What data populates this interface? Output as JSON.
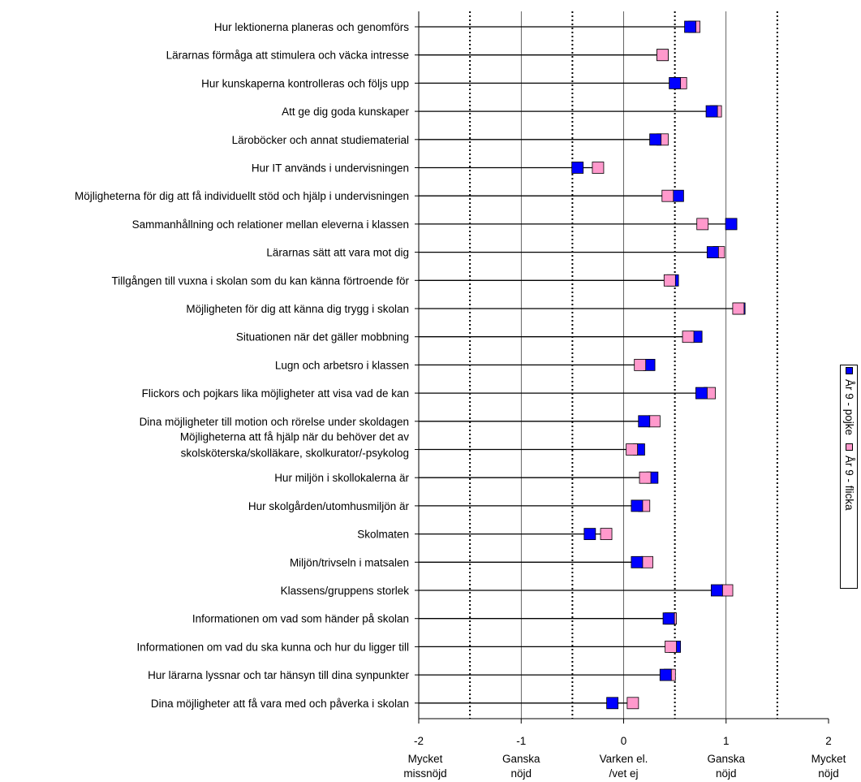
{
  "chart_data": {
    "type": "dot",
    "categories": [
      "Hur lektionerna planeras och genomförs",
      "Lärarnas förmåga att stimulera och väcka intresse",
      "Hur kunskaperna kontrolleras och följs upp",
      "Att ge dig goda kunskaper",
      "Läroböcker och annat studiematerial",
      "Hur IT används  i undervisningen",
      "Möjligheterna för dig  att få individuellt stöd och hjälp i undervisningen",
      "Sammanhållning och relationer mellan eleverna i klassen",
      "Lärarnas sätt att vara mot dig",
      "Tillgången till vuxna i skolan som du kan känna förtroende för",
      "Möjligheten för dig att känna dig trygg i skolan",
      "Situationen när det gäller mobbning",
      "Lugn och arbetsro i klassen",
      "Flickors och pojkars lika möjligheter att visa vad de kan",
      "Dina  möjligheter till motion och  rörelse under skoldagen",
      "Möjligheterna att få hjälp när du behöver det  av skolsköterska/skolläkare, skolkurator/-psykolog",
      "Hur miljön i skollokalerna är",
      "Hur skolgården/utomhusmiljön  är",
      "Skolmaten",
      "Miljön/trivseln i matsalen",
      "Klassens/gruppens storlek",
      "Informationen om vad som händer på skolan",
      "Informationen om vad du ska kunna och hur du ligger till",
      "Hur lärarna lyssnar och tar hänsyn till dina synpunkter",
      "Dina möjligheter att få vara med och påverka i skolan"
    ],
    "category_lines": [
      [
        "Hur lektionerna planeras och genomförs"
      ],
      [
        "Lärarnas förmåga att stimulera och väcka intresse"
      ],
      [
        "Hur kunskaperna kontrolleras och följs upp"
      ],
      [
        "Att ge dig goda kunskaper"
      ],
      [
        "Läroböcker och annat studiematerial"
      ],
      [
        "Hur IT används  i undervisningen"
      ],
      [
        "Möjligheterna för dig  att få individuellt stöd och hjälp i undervisningen"
      ],
      [
        "Sammanhållning och relationer mellan eleverna i klassen"
      ],
      [
        "Lärarnas sätt att vara mot dig"
      ],
      [
        "Tillgången till vuxna i skolan som du kan känna förtroende för"
      ],
      [
        "Möjligheten för dig att känna dig trygg i skolan"
      ],
      [
        "Situationen när det gäller mobbning"
      ],
      [
        "Lugn och arbetsro i klassen"
      ],
      [
        "Flickors och pojkars lika möjligheter att visa vad de kan"
      ],
      [
        "Dina  möjligheter till motion och  rörelse under skoldagen"
      ],
      [
        "Möjligheterna att få hjälp när du behöver det  av",
        "skolsköterska/skolläkare, skolkurator/-psykolog"
      ],
      [
        "Hur miljön i skollokalerna är"
      ],
      [
        "Hur skolgården/utomhusmiljön  är"
      ],
      [
        "Skolmaten"
      ],
      [
        "Miljön/trivseln i matsalen"
      ],
      [
        "Klassens/gruppens storlek"
      ],
      [
        "Informationen om vad som händer på skolan"
      ],
      [
        "Informationen om vad du ska kunna och hur du ligger till"
      ],
      [
        "Hur lärarna lyssnar och tar hänsyn till dina synpunkter"
      ],
      [
        "Dina möjligheter att få vara med och påverka i skolan"
      ]
    ],
    "series": [
      {
        "name": "År 9 - pojke",
        "color": "#0000FF",
        "values": [
          0.65,
          0.38,
          0.5,
          0.86,
          0.31,
          -0.45,
          0.53,
          1.05,
          0.87,
          0.48,
          1.13,
          0.71,
          0.25,
          0.76,
          0.2,
          0.15,
          0.28,
          0.13,
          -0.33,
          0.13,
          0.91,
          0.44,
          0.5,
          0.41,
          -0.11
        ]
      },
      {
        "name": "År 9 - flicka",
        "color": "#FF99CC",
        "values": [
          0.69,
          0.38,
          0.56,
          0.9,
          0.38,
          -0.25,
          0.43,
          0.77,
          0.93,
          0.45,
          1.12,
          0.63,
          0.16,
          0.84,
          0.3,
          0.08,
          0.21,
          0.2,
          -0.17,
          0.23,
          1.01,
          0.46,
          0.46,
          0.45,
          0.09
        ]
      }
    ],
    "xlim": [
      -2,
      2
    ],
    "xticks": [
      -2,
      -1,
      0,
      1,
      2
    ],
    "xtick_labels": [
      "-2",
      "-1",
      "0",
      "1",
      "2"
    ],
    "x_descriptors": [
      {
        "x": -2,
        "lines": [
          "Mycket",
          "missnöjd"
        ]
      },
      {
        "x": -1,
        "lines": [
          "Ganska",
          "nöjd"
        ]
      },
      {
        "x": 0,
        "lines": [
          "Varken el.",
          "/vet ej"
        ]
      },
      {
        "x": 1,
        "lines": [
          "Ganska",
          "nöjd"
        ]
      },
      {
        "x": 2,
        "lines": [
          "Mycket",
          "nöjd"
        ]
      }
    ],
    "grid_solid_x": [
      -1,
      0,
      1
    ],
    "grid_dotted_x": [
      -1.5,
      -0.5,
      0.5,
      1.5
    ],
    "legend_placement": "right",
    "title": "",
    "xlabel": "",
    "ylabel": ""
  }
}
